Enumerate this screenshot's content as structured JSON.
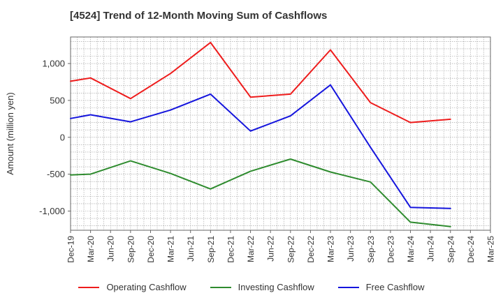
{
  "title": "[4524]  Trend of 12-Month Moving Sum of Cashflows",
  "chart_data": {
    "type": "line",
    "title": "[4524]  Trend of 12-Month Moving Sum of Cashflows",
    "xlabel": "",
    "ylabel": "Amount (million yen)",
    "x_ticks": [
      "Dec-19",
      "Mar-20",
      "Jun-20",
      "Sep-20",
      "Dec-20",
      "Mar-21",
      "Jun-21",
      "Sep-21",
      "Dec-21",
      "Mar-22",
      "Jun-22",
      "Sep-22",
      "Dec-22",
      "Mar-23",
      "Jun-23",
      "Sep-23",
      "Dec-23",
      "Mar-24",
      "Jun-24",
      "Sep-24",
      "Dec-24",
      "Mar-25"
    ],
    "y_ticks": [
      1000,
      500,
      0,
      -500,
      -1000
    ],
    "y_tick_labels": [
      "1,000",
      "500",
      "0",
      "-500",
      "-1,000"
    ],
    "ylim": [
      -1260,
      1360
    ],
    "grid": true,
    "legend_position": "bottom",
    "series": [
      {
        "name": "Operating Cashflow",
        "color": "#ee1c1c",
        "points": [
          [
            "Dec-19",
            760
          ],
          [
            "Mar-20",
            805
          ],
          [
            "Sep-20",
            525
          ],
          [
            "Mar-21",
            865
          ],
          [
            "Sep-21",
            1285
          ],
          [
            "Mar-22",
            545
          ],
          [
            "Sep-22",
            585
          ],
          [
            "Mar-23",
            1185
          ],
          [
            "Sep-23",
            470
          ],
          [
            "Mar-24",
            200
          ],
          [
            "Sep-24",
            245
          ]
        ]
      },
      {
        "name": "Investing Cashflow",
        "color": "#2e8b2e",
        "points": [
          [
            "Dec-19",
            -510
          ],
          [
            "Mar-20",
            -500
          ],
          [
            "Sep-20",
            -320
          ],
          [
            "Mar-21",
            -490
          ],
          [
            "Sep-21",
            -700
          ],
          [
            "Mar-22",
            -460
          ],
          [
            "Sep-22",
            -295
          ],
          [
            "Mar-23",
            -470
          ],
          [
            "Sep-23",
            -605
          ],
          [
            "Mar-24",
            -1150
          ],
          [
            "Sep-24",
            -1210
          ]
        ]
      },
      {
        "name": "Free Cashflow",
        "color": "#1515dd",
        "points": [
          [
            "Dec-19",
            255
          ],
          [
            "Mar-20",
            305
          ],
          [
            "Sep-20",
            210
          ],
          [
            "Mar-21",
            370
          ],
          [
            "Sep-21",
            585
          ],
          [
            "Mar-22",
            85
          ],
          [
            "Sep-22",
            290
          ],
          [
            "Mar-23",
            710
          ],
          [
            "Sep-23",
            -135
          ],
          [
            "Mar-24",
            -950
          ],
          [
            "Sep-24",
            -965
          ]
        ]
      }
    ]
  }
}
